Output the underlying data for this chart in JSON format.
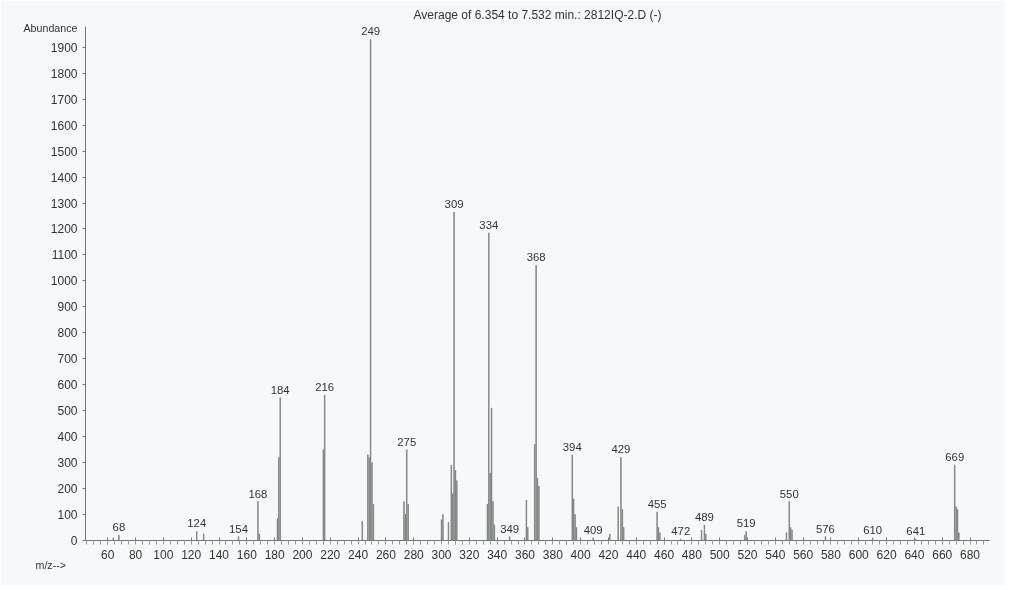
{
  "chart_data": {
    "type": "bar",
    "title": "Average of 6.354 to 7.532 min.: 2812IQ-2.D (-)",
    "xlabel": "m/z-->",
    "ylabel": "Abundance",
    "color": "#7a7a7a",
    "grid": false,
    "x": [
      64,
      68,
      124,
      129,
      154,
      168,
      169,
      182,
      183,
      184,
      215,
      216,
      243,
      247,
      248,
      249,
      250,
      251,
      273,
      274,
      275,
      276,
      300,
      301,
      305,
      307,
      308,
      309,
      310,
      311,
      333,
      334,
      335,
      336,
      337,
      338,
      349,
      361,
      362,
      367,
      368,
      369,
      370,
      394,
      395,
      396,
      397,
      409,
      421,
      427,
      429,
      430,
      431,
      455,
      456,
      457,
      472,
      487,
      489,
      490,
      518,
      519,
      548,
      550,
      551,
      552,
      576,
      610,
      641,
      669,
      670,
      671,
      672
    ],
    "values": [
      10,
      20,
      35,
      25,
      15,
      150,
      25,
      85,
      320,
      550,
      350,
      560,
      75,
      330,
      320,
      1930,
      300,
      140,
      150,
      100,
      350,
      140,
      80,
      100,
      70,
      290,
      180,
      1265,
      270,
      230,
      140,
      1185,
      260,
      510,
      150,
      60,
      15,
      155,
      50,
      370,
      1060,
      240,
      210,
      330,
      160,
      100,
      50,
      10,
      25,
      130,
      320,
      120,
      50,
      110,
      50,
      30,
      5,
      40,
      60,
      25,
      20,
      35,
      30,
      150,
      50,
      40,
      15,
      10,
      5,
      290,
      130,
      120,
      30
    ],
    "xlim": [
      44,
      694
    ],
    "ylim": [
      0,
      1980
    ],
    "xticks": [
      60,
      80,
      100,
      120,
      140,
      160,
      180,
      200,
      220,
      240,
      260,
      280,
      300,
      320,
      340,
      360,
      380,
      400,
      420,
      440,
      460,
      480,
      500,
      520,
      540,
      560,
      580,
      600,
      620,
      640,
      660,
      680
    ],
    "yticks": [
      0,
      100,
      200,
      300,
      400,
      500,
      600,
      700,
      800,
      900,
      1000,
      1100,
      1200,
      1300,
      1400,
      1500,
      1600,
      1700,
      1800,
      1900
    ],
    "annotations": [
      {
        "text": "68",
        "x": 68,
        "y": 20
      },
      {
        "text": "124",
        "x": 124,
        "y": 35
      },
      {
        "text": "154",
        "x": 154,
        "y": 15
      },
      {
        "text": "168",
        "x": 168,
        "y": 150
      },
      {
        "text": "184",
        "x": 184,
        "y": 550
      },
      {
        "text": "216",
        "x": 216,
        "y": 560
      },
      {
        "text": "249",
        "x": 249,
        "y": 1930
      },
      {
        "text": "275",
        "x": 275,
        "y": 350
      },
      {
        "text": "309",
        "x": 309,
        "y": 1265
      },
      {
        "text": "334",
        "x": 334,
        "y": 1185
      },
      {
        "text": "349",
        "x": 349,
        "y": 15
      },
      {
        "text": "368",
        "x": 368,
        "y": 1060
      },
      {
        "text": "394",
        "x": 394,
        "y": 330
      },
      {
        "text": "409",
        "x": 409,
        "y": 10
      },
      {
        "text": "429",
        "x": 429,
        "y": 320
      },
      {
        "text": "455",
        "x": 455,
        "y": 110
      },
      {
        "text": "472",
        "x": 472,
        "y": 5
      },
      {
        "text": "489",
        "x": 489,
        "y": 60
      },
      {
        "text": "519",
        "x": 519,
        "y": 35
      },
      {
        "text": "550",
        "x": 550,
        "y": 150
      },
      {
        "text": "576",
        "x": 576,
        "y": 15
      },
      {
        "text": "610",
        "x": 610,
        "y": 10
      },
      {
        "text": "641",
        "x": 641,
        "y": 5
      },
      {
        "text": "669",
        "x": 669,
        "y": 290
      }
    ]
  }
}
